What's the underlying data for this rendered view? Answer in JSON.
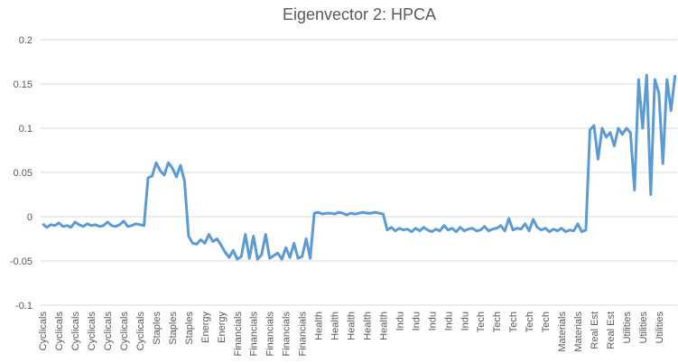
{
  "chart_data": {
    "type": "line",
    "title": "Eigenvector 2: HPCA",
    "categories": [
      "Cyclicals",
      null,
      null,
      null,
      "Cyclicals",
      null,
      null,
      null,
      "Cyclicals",
      null,
      null,
      null,
      "Cyclicals",
      null,
      null,
      null,
      "Cyclicals",
      null,
      null,
      null,
      "Cyclicals",
      null,
      null,
      null,
      "Cyclicals",
      null,
      null,
      null,
      "Staples",
      null,
      null,
      null,
      "Staples",
      null,
      null,
      null,
      "Staples",
      null,
      null,
      null,
      "Energy",
      null,
      null,
      null,
      "Energy",
      null,
      null,
      null,
      "Financials",
      null,
      null,
      null,
      "Financials",
      null,
      null,
      null,
      "Financials",
      null,
      null,
      null,
      "Financials",
      null,
      null,
      null,
      "Financials",
      null,
      null,
      null,
      "Health",
      null,
      null,
      null,
      "Health",
      null,
      null,
      null,
      "Health",
      null,
      null,
      null,
      "Health",
      null,
      null,
      null,
      "Health",
      null,
      null,
      null,
      "Indu",
      null,
      null,
      null,
      "Indu",
      null,
      null,
      null,
      "Indu",
      null,
      null,
      null,
      "Indu",
      null,
      null,
      null,
      "Indu",
      null,
      null,
      null,
      "Tech",
      null,
      null,
      null,
      "Tech",
      null,
      null,
      null,
      "Tech",
      null,
      null,
      null,
      "Tech",
      null,
      null,
      null,
      "Tech",
      null,
      null,
      null,
      "Materials",
      null,
      null,
      null,
      "Materials",
      null,
      null,
      null,
      "Real Est",
      null,
      null,
      null,
      "Real Est",
      null,
      null,
      null,
      "Utilities",
      null,
      null,
      null,
      "Utilities",
      null,
      null,
      null,
      "Utilities",
      null,
      null,
      null,
      null
    ],
    "values": [
      -0.008,
      -0.012,
      -0.009,
      -0.01,
      -0.007,
      -0.011,
      -0.01,
      -0.012,
      -0.006,
      -0.009,
      -0.011,
      -0.008,
      -0.01,
      -0.009,
      -0.011,
      -0.01,
      -0.006,
      -0.01,
      -0.011,
      -0.009,
      -0.005,
      -0.011,
      -0.01,
      -0.008,
      -0.009,
      -0.01,
      0.044,
      0.046,
      0.061,
      0.052,
      0.047,
      0.061,
      0.055,
      0.045,
      0.058,
      0.04,
      -0.022,
      -0.03,
      -0.031,
      -0.026,
      -0.03,
      -0.02,
      -0.028,
      -0.025,
      -0.032,
      -0.04,
      -0.046,
      -0.038,
      -0.048,
      -0.045,
      -0.02,
      -0.047,
      -0.022,
      -0.048,
      -0.043,
      -0.02,
      -0.047,
      -0.044,
      -0.041,
      -0.048,
      -0.035,
      -0.046,
      -0.03,
      -0.047,
      -0.045,
      -0.025,
      -0.047,
      0.004,
      0.005,
      0.003,
      0.004,
      0.004,
      0.003,
      0.005,
      0.004,
      0.002,
      0.004,
      0.003,
      0.004,
      0.005,
      0.004,
      0.004,
      0.005,
      0.004,
      0.003,
      -0.015,
      -0.012,
      -0.016,
      -0.013,
      -0.015,
      -0.014,
      -0.017,
      -0.013,
      -0.016,
      -0.012,
      -0.015,
      -0.017,
      -0.014,
      -0.016,
      -0.01,
      -0.015,
      -0.013,
      -0.017,
      -0.012,
      -0.016,
      -0.014,
      -0.013,
      -0.016,
      -0.015,
      -0.011,
      -0.016,
      -0.014,
      -0.013,
      -0.01,
      -0.016,
      -0.002,
      -0.015,
      -0.013,
      -0.014,
      -0.008,
      -0.016,
      -0.003,
      -0.012,
      -0.015,
      -0.013,
      -0.017,
      -0.014,
      -0.016,
      -0.013,
      -0.017,
      -0.015,
      -0.016,
      -0.008,
      -0.017,
      -0.015,
      0.098,
      0.103,
      0.065,
      0.1,
      0.09,
      0.095,
      0.08,
      0.1,
      0.093,
      0.1,
      0.095,
      0.03,
      0.155,
      0.1,
      0.16,
      0.025,
      0.155,
      0.14,
      0.06,
      0.155,
      0.12,
      0.16
    ],
    "color": "#5b9bd5",
    "ylim": [
      -0.1,
      0.2
    ],
    "yticks": [
      -0.1,
      -0.05,
      0,
      0.05,
      0.1,
      0.15,
      0.2
    ],
    "grid": true
  }
}
